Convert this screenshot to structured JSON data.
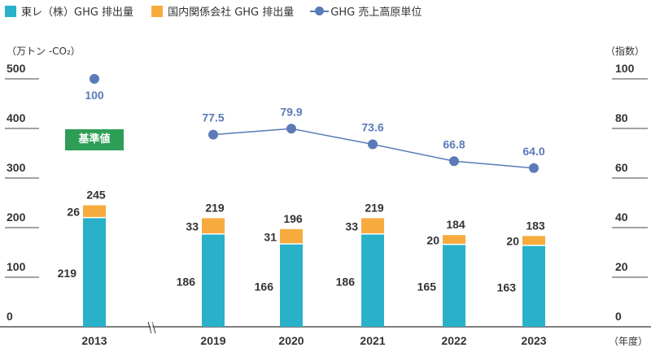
{
  "legend": {
    "toray": "東レ（株）GHG 排出量",
    "affiliates": "国内関係会社 GHG 排出量",
    "index": "GHG 売上高原単位"
  },
  "axis": {
    "left_unit": "（万トン -CO₂）",
    "right_unit": "（指数）",
    "x_unit": "（年度）"
  },
  "base_label": "基準値",
  "colors": {
    "toray": "#29b1c9",
    "affiliates": "#f7ab3d",
    "index": "#5a7bb8",
    "badge": "#2e9e56"
  },
  "chart_data": {
    "type": "bar",
    "stacked": true,
    "categories": [
      "2013",
      "2019",
      "2020",
      "2021",
      "2022",
      "2023"
    ],
    "series": [
      {
        "name": "東レ（株）GHG 排出量",
        "values": [
          219,
          186,
          166,
          186,
          165,
          163
        ]
      },
      {
        "name": "国内関係会社 GHG 排出量",
        "values": [
          26,
          33,
          31,
          33,
          20,
          20
        ]
      }
    ],
    "totals": [
      245,
      219,
      196,
      219,
      184,
      183
    ],
    "line_series": {
      "name": "GHG 売上高原単位",
      "axis": "right",
      "values": [
        100,
        77.5,
        79.9,
        73.6,
        66.8,
        64.0
      ],
      "labels": [
        "100",
        "77.5",
        "79.9",
        "73.6",
        "66.8",
        "64.0"
      ]
    },
    "y_left": {
      "ticks": [
        0,
        100,
        200,
        300,
        400,
        500
      ],
      "range": [
        0,
        500
      ]
    },
    "y_right": {
      "ticks": [
        0,
        20,
        40,
        60,
        80,
        100
      ],
      "range": [
        0,
        100
      ]
    },
    "axis_break_between": [
      "2013",
      "2019"
    ]
  }
}
